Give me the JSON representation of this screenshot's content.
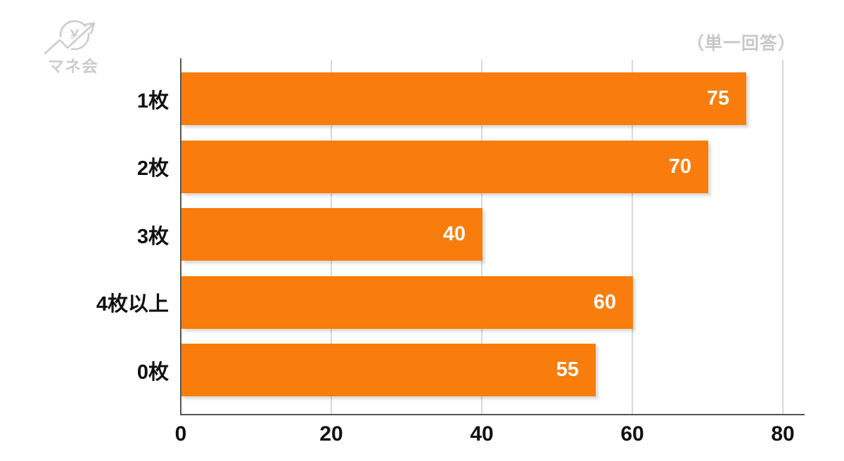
{
  "brand": {
    "name": "マネ会",
    "icon": "coin-yen-arrow-icon"
  },
  "chart_data": {
    "type": "bar",
    "orientation": "horizontal",
    "title": "",
    "note": "（単一回答）",
    "categories": [
      "1枚",
      "2枚",
      "3枚",
      "4枚以上",
      "0枚"
    ],
    "values": [
      75,
      70,
      40,
      60,
      55
    ],
    "xlabel": "",
    "ylabel": "",
    "xlim": [
      0,
      82.8
    ],
    "xticks": [
      0,
      20,
      40,
      60,
      80
    ],
    "grid": true,
    "legend": false,
    "colors": {
      "bar": "#f87d0c",
      "value_label": "#ffffff",
      "category_label": "#111111",
      "tick_label": "#111111",
      "gridline": "#d8d8d8",
      "axis": "#555555",
      "note_text": "#c8c8c8",
      "logo": "#cccccc",
      "background": "#ffffff"
    }
  }
}
